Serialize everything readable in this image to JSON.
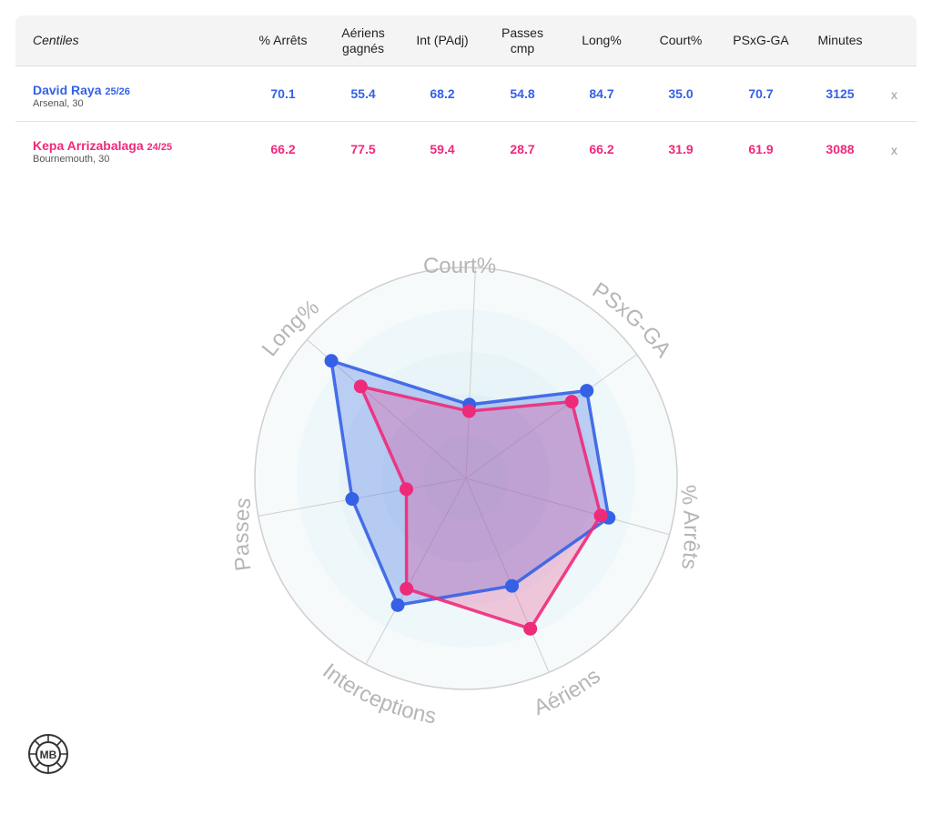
{
  "table": {
    "header_label": "Centiles",
    "columns": [
      "% Arrêts",
      "Aériens\ngagnés",
      "Int (PAdj)",
      "Passes\ncmp",
      "Long%",
      "Court%",
      "PSxG-GA",
      "Minutes"
    ],
    "remove_label": "x",
    "players": [
      {
        "name": "David Raya",
        "season": "25/26",
        "club": "Arsenal, 30",
        "color": "#3561e6",
        "values": [
          "70.1",
          "55.4",
          "68.2",
          "54.8",
          "84.7",
          "35.0",
          "70.7",
          "3125"
        ]
      },
      {
        "name": "Kepa Arrizabalaga",
        "season": "24/25",
        "club": "Bournemouth, 30",
        "color": "#ee2a7b",
        "values": [
          "66.2",
          "77.5",
          "59.4",
          "28.7",
          "66.2",
          "31.9",
          "61.9",
          "3088"
        ]
      }
    ]
  },
  "chart_data": {
    "type": "radar",
    "axes": [
      "Court%",
      "PSxG-GA",
      "% Arrêts",
      "Aériens",
      "Interceptions",
      "Passes",
      "Long%"
    ],
    "range": [
      0,
      100
    ],
    "rings": 5,
    "series": [
      {
        "name": "David Raya",
        "color": "#3561e6",
        "values": [
          35.0,
          70.7,
          70.1,
          55.4,
          68.2,
          54.8,
          84.7
        ]
      },
      {
        "name": "Kepa Arrizabalaga",
        "color": "#ee2a7b",
        "values": [
          31.9,
          61.9,
          66.2,
          77.5,
          59.4,
          28.7,
          66.2
        ]
      }
    ]
  },
  "logo": {
    "text": "MB"
  }
}
